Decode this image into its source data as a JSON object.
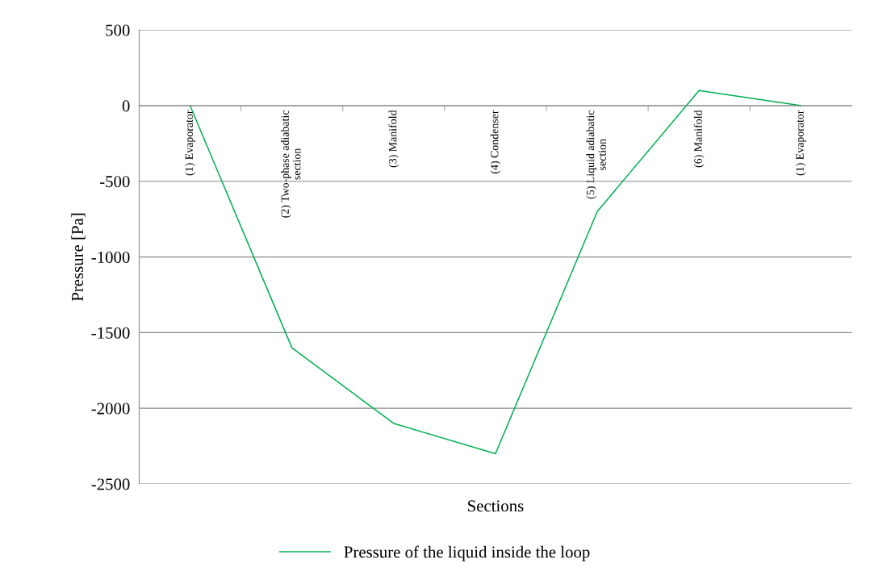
{
  "chart_data": {
    "type": "line",
    "xlabel": "Sections",
    "ylabel": "Pressure [Pa]",
    "categories": [
      "(1) Evaporator",
      "(2) Two-phase adiabatic section",
      "(3) Manifold",
      "(4) Condenser",
      "(5) Liquid adiabatic section",
      "(6) Manifold",
      "(1) Evaporator"
    ],
    "series": [
      {
        "name": "Pressure of the liquid inside the loop",
        "color": "#00b050",
        "values": [
          0,
          -1600,
          -2100,
          -2300,
          -700,
          100,
          0
        ]
      }
    ],
    "ylim": [
      -2500,
      500
    ],
    "yticks": [
      -2500,
      -2000,
      -1500,
      -1000,
      -500,
      0,
      500
    ],
    "grid": "y",
    "legend": "bottom",
    "marker": "none",
    "line_style": "solid"
  }
}
